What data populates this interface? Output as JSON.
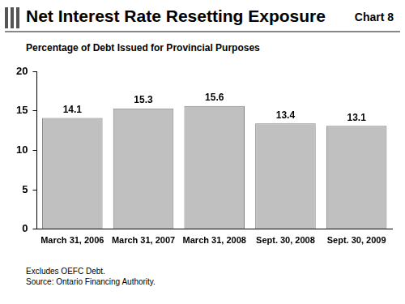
{
  "chart_data": {
    "type": "bar",
    "title": "Net Interest Rate Resetting Exposure",
    "chart_label": "Chart 8",
    "subtitle": "Percentage of Debt Issued for Provincial Purposes",
    "categories": [
      "March 31, 2006",
      "March 31, 2007",
      "March 31, 2008",
      "Sept. 30, 2008",
      "Sept. 30, 2009"
    ],
    "values": [
      14.1,
      15.3,
      15.6,
      13.4,
      13.1
    ],
    "color": "#c0c0c0",
    "ylim": [
      0,
      20
    ],
    "yticks": [
      0,
      5,
      10,
      15,
      20
    ],
    "grid": false,
    "data_labels": true,
    "notes": [
      "Excludes OEFC Debt.",
      "Source: Ontario Financing Authority."
    ]
  }
}
